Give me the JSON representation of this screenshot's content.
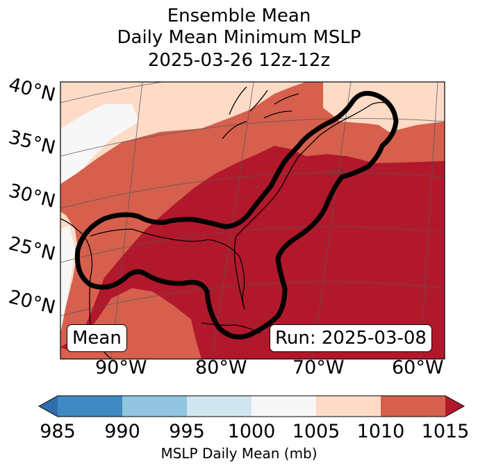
{
  "title": {
    "line1": "Ensemble Mean",
    "line2": "Daily Mean Minimum MSLP",
    "line3": "2025-03-26 12z-12z"
  },
  "map": {
    "lat_labels": [
      "40°N",
      "35°N",
      "30°N",
      "25°N",
      "20°N"
    ],
    "lon_labels": [
      "90°W",
      "80°W",
      "70°W",
      "60°W"
    ],
    "left_box": "Mean",
    "right_box": "Run: 2025-03-08"
  },
  "colors": {
    "c985": "#2f6ead",
    "c990": "#3f8ac2",
    "c995": "#92c5de",
    "c1000": "#d1e5f0",
    "c1005": "#f7f7f7",
    "c1010": "#fddbc7",
    "c1015": "#d6604d",
    "over": "#b2182b"
  },
  "colorbar": {
    "ticks": [
      "985",
      "990",
      "995",
      "1000",
      "1005",
      "1010",
      "1015"
    ],
    "label": "MSLP Daily Mean (mb)"
  }
}
